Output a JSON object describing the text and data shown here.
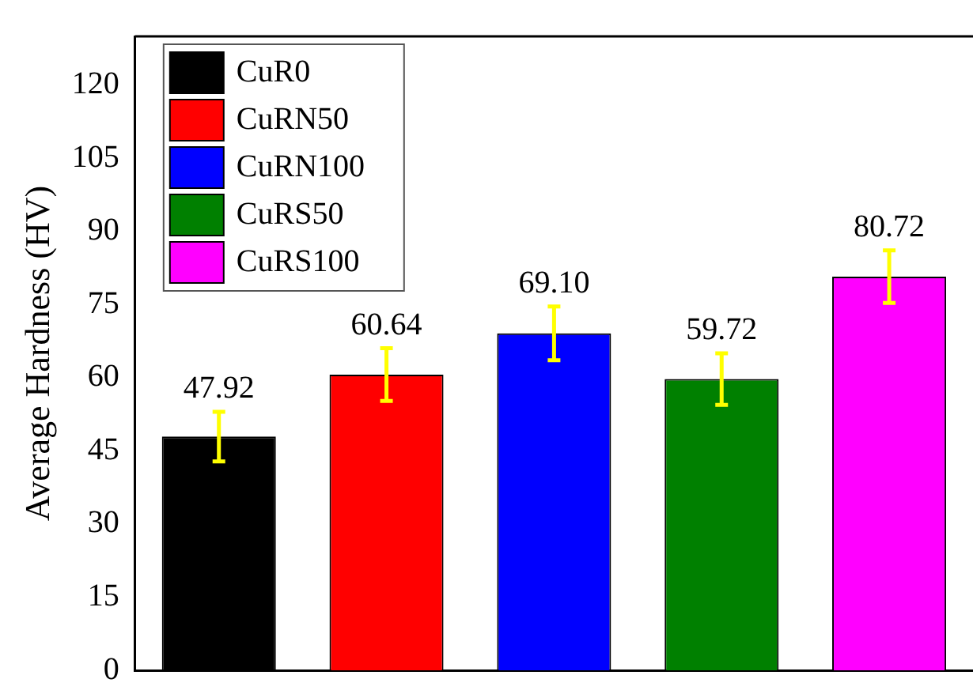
{
  "chart_data": {
    "type": "bar",
    "ylabel": "Average Hardness (HV)",
    "categories": [
      null,
      null,
      null,
      null,
      null
    ],
    "series": [
      {
        "name": "CuR0",
        "color": "#000000",
        "values": [
          47.92,
          null,
          null,
          null,
          null
        ],
        "errors": [
          5.1,
          null,
          null,
          null,
          null
        ],
        "value_labels": [
          "47.92",
          null,
          null,
          null,
          null
        ]
      },
      {
        "name": "CuRN50",
        "color": "#ff0000",
        "values": [
          null,
          60.64,
          null,
          null,
          null
        ],
        "errors": [
          null,
          5.4,
          null,
          null,
          null
        ],
        "value_labels": [
          null,
          "60.64",
          null,
          null,
          null
        ]
      },
      {
        "name": "CuRN100",
        "color": "#0000ff",
        "values": [
          null,
          null,
          69.1,
          null,
          null
        ],
        "errors": [
          null,
          null,
          5.5,
          null,
          null
        ],
        "value_labels": [
          null,
          null,
          "69.10",
          null,
          null
        ]
      },
      {
        "name": "CuRS50",
        "color": "#008000",
        "values": [
          null,
          null,
          null,
          59.72,
          null
        ],
        "errors": [
          null,
          null,
          null,
          5.3,
          null
        ],
        "value_labels": [
          null,
          null,
          null,
          "59.72",
          null
        ]
      },
      {
        "name": "CuRS100",
        "color": "#ff00ff",
        "values": [
          null,
          null,
          null,
          null,
          80.72
        ],
        "errors": [
          null,
          null,
          null,
          null,
          5.4
        ],
        "value_labels": [
          null,
          null,
          null,
          null,
          "80.72"
        ]
      }
    ],
    "ylim": [
      0,
      130
    ],
    "yticks": [
      0,
      15,
      30,
      45,
      60,
      75,
      90,
      105,
      120
    ],
    "tick_labels": "y",
    "legend": "top left",
    "grid": false
  }
}
